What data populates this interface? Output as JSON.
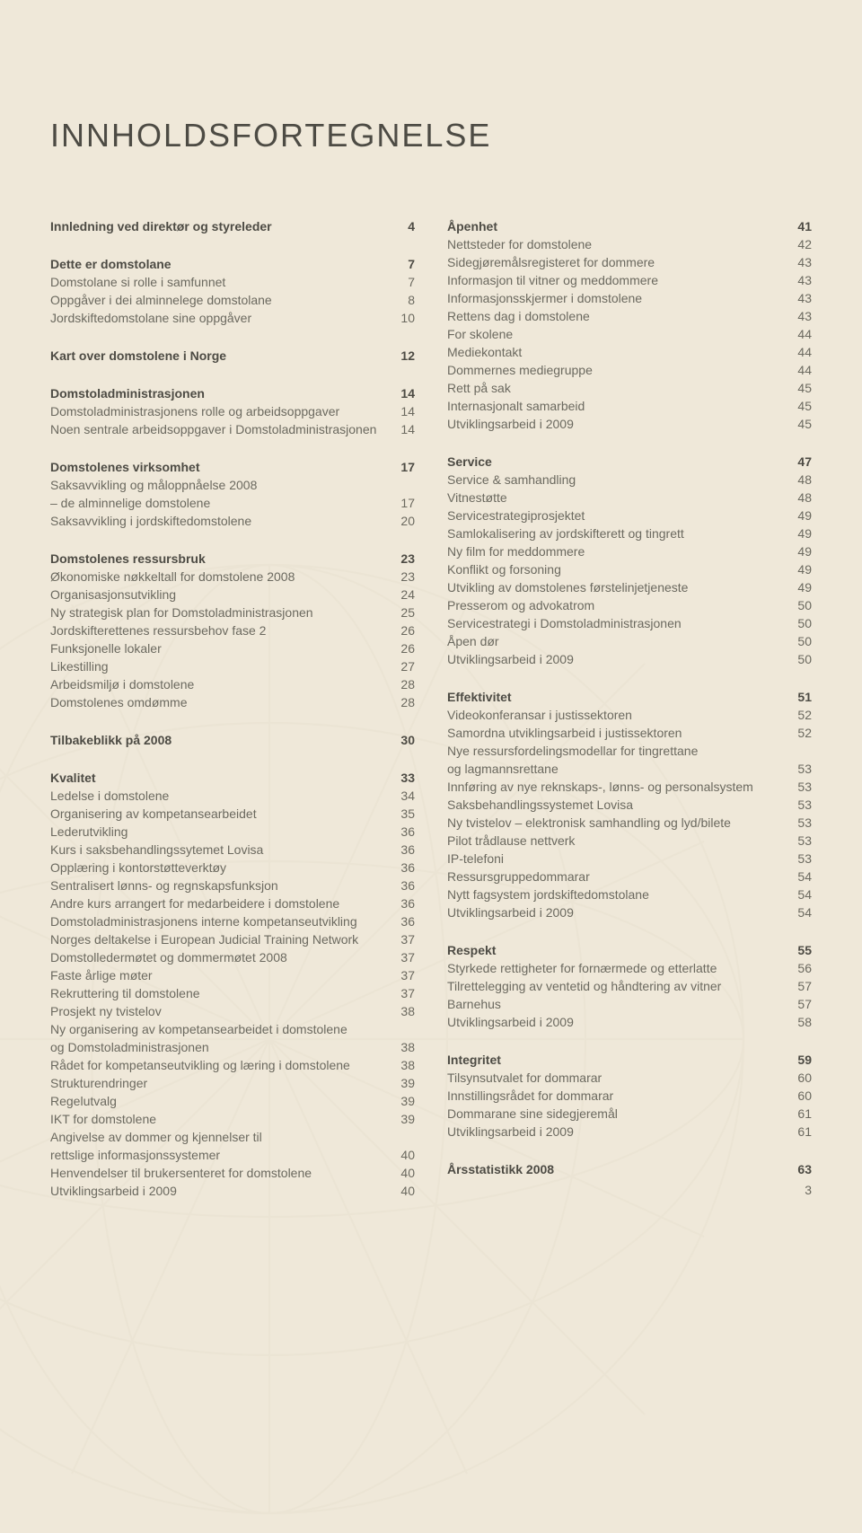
{
  "colors": {
    "background": "#efe8d9",
    "heading_text": "#4d4b44",
    "bold_text": "#4d4b44",
    "body_text": "#6b695f",
    "watermark_stroke": "#d9d0b9"
  },
  "title": "INNHOLDSFORTEGNELSE",
  "page_number": "3",
  "columns": [
    {
      "sections": [
        {
          "rows": [
            {
              "label": "Innledning ved direktør og styreleder",
              "page": "4",
              "bold": true
            }
          ]
        },
        {
          "rows": [
            {
              "label": "Dette er domstolane",
              "page": "7",
              "bold": true
            },
            {
              "label": "Domstolane si rolle i samfunnet",
              "page": "7"
            },
            {
              "label": "Oppgåver i dei alminnelege domstolane",
              "page": "8"
            },
            {
              "label": "Jordskiftedomstolane sine oppgåver",
              "page": "10"
            }
          ]
        },
        {
          "rows": [
            {
              "label": "Kart over domstolene i Norge",
              "page": "12",
              "bold": true
            }
          ]
        },
        {
          "rows": [
            {
              "label": "Domstoladministrasjonen",
              "page": "14",
              "bold": true
            },
            {
              "label": "Domstoladministrasjonens rolle og arbeidsoppgaver",
              "page": "14"
            },
            {
              "label": "Noen sentrale arbeidsoppgaver i Domstoladministrasjonen",
              "page": "14"
            }
          ]
        },
        {
          "rows": [
            {
              "label": "Domstolenes virksomhet",
              "page": "17",
              "bold": true
            },
            {
              "label": "Saksavvikling og måloppnåelse 2008",
              "page": ""
            },
            {
              "label": "– de alminnelige domstolene",
              "page": "17"
            },
            {
              "label": "Saksavvikling i jordskiftedomstolene",
              "page": "20"
            }
          ]
        },
        {
          "rows": [
            {
              "label": "Domstolenes ressursbruk",
              "page": "23",
              "bold": true
            },
            {
              "label": "Økonomiske nøkkeltall for domstolene 2008",
              "page": "23"
            },
            {
              "label": "Organisasjonsutvikling",
              "page": "24"
            },
            {
              "label": "Ny strategisk plan for Domstoladministrasjonen",
              "page": "25"
            },
            {
              "label": "Jordskifterettenes ressursbehov fase 2",
              "page": "26"
            },
            {
              "label": "Funksjonelle lokaler",
              "page": "26"
            },
            {
              "label": "Likestilling",
              "page": "27"
            },
            {
              "label": "Arbeidsmiljø i domstolene",
              "page": "28"
            },
            {
              "label": "Domstolenes omdømme",
              "page": "28"
            }
          ]
        },
        {
          "rows": [
            {
              "label": "Tilbakeblikk på 2008",
              "page": "30",
              "bold": true
            }
          ]
        },
        {
          "rows": [
            {
              "label": "Kvalitet",
              "page": "33",
              "bold": true
            },
            {
              "label": "Ledelse i domstolene",
              "page": "34"
            },
            {
              "label": "Organisering av kompetansearbeidet",
              "page": "35"
            },
            {
              "label": "Lederutvikling",
              "page": "36"
            },
            {
              "label": "Kurs i saksbehandlingssytemet Lovisa",
              "page": "36"
            },
            {
              "label": "Opplæring i kontorstøtteverktøy",
              "page": "36"
            },
            {
              "label": "Sentralisert lønns- og regnskapsfunksjon",
              "page": "36"
            },
            {
              "label": "Andre kurs arrangert for medarbeidere i domstolene",
              "page": "36"
            },
            {
              "label": "Domstoladministrasjonens interne kompetanseutvikling",
              "page": "36"
            },
            {
              "label": "Norges deltakelse i European Judicial Training Network",
              "page": "37"
            },
            {
              "label": "Domstolledermøtet og dommermøtet 2008",
              "page": "37"
            },
            {
              "label": "Faste årlige møter",
              "page": "37"
            },
            {
              "label": "Rekruttering til domstolene",
              "page": "37"
            },
            {
              "label": "Prosjekt ny tvistelov",
              "page": "38"
            },
            {
              "label": "Ny organisering av kompetansearbeidet i domstolene",
              "page": ""
            },
            {
              "label": "og Domstoladministrasjonen",
              "page": "38"
            },
            {
              "label": "Rådet for kompetanseutvikling og læring i domstolene",
              "page": "38"
            },
            {
              "label": "Strukturendringer",
              "page": "39"
            },
            {
              "label": "Regelutvalg",
              "page": "39"
            },
            {
              "label": "IKT for domstolene",
              "page": "39"
            },
            {
              "label": "Angivelse av dommer og kjennelser til",
              "page": ""
            },
            {
              "label": "rettslige informasjonssystemer",
              "page": "40"
            },
            {
              "label": "Henvendelser til brukersenteret for domstolene",
              "page": "40"
            },
            {
              "label": "Utviklingsarbeid i 2009",
              "page": "40"
            }
          ]
        }
      ]
    },
    {
      "sections": [
        {
          "rows": [
            {
              "label": "Åpenhet",
              "page": "41",
              "bold": true
            },
            {
              "label": "Nettsteder for domstolene",
              "page": "42"
            },
            {
              "label": "Sidegjøremålsregisteret for dommere",
              "page": "43"
            },
            {
              "label": "Informasjon til vitner og meddommere",
              "page": "43"
            },
            {
              "label": "Informasjonsskjermer i domstolene",
              "page": "43"
            },
            {
              "label": "Rettens dag i domstolene",
              "page": "43"
            },
            {
              "label": "For skolene",
              "page": "44"
            },
            {
              "label": "Mediekontakt",
              "page": "44"
            },
            {
              "label": "Dommernes mediegruppe",
              "page": "44"
            },
            {
              "label": "Rett på sak",
              "page": "45"
            },
            {
              "label": "Internasjonalt samarbeid",
              "page": "45"
            },
            {
              "label": "Utviklingsarbeid i 2009",
              "page": "45"
            }
          ]
        },
        {
          "rows": [
            {
              "label": "Service",
              "page": "47",
              "bold": true
            },
            {
              "label": "Service & samhandling",
              "page": "48"
            },
            {
              "label": "Vitnestøtte",
              "page": "48"
            },
            {
              "label": "Servicestrategiprosjektet",
              "page": "49"
            },
            {
              "label": "Samlokalisering av jordskifterett og tingrett",
              "page": "49"
            },
            {
              "label": "Ny film for meddommere",
              "page": "49"
            },
            {
              "label": "Konflikt og forsoning",
              "page": "49"
            },
            {
              "label": "Utvikling av domstolenes førstelinjetjeneste",
              "page": "49"
            },
            {
              "label": "Presserom og advokatrom",
              "page": "50"
            },
            {
              "label": "Servicestrategi i Domstoladministrasjonen",
              "page": "50"
            },
            {
              "label": "Åpen dør",
              "page": "50"
            },
            {
              "label": "Utviklingsarbeid i 2009",
              "page": "50"
            }
          ]
        },
        {
          "rows": [
            {
              "label": "Effektivitet",
              "page": "51",
              "bold": true
            },
            {
              "label": "Videokonferansar i justissektoren",
              "page": "52"
            },
            {
              "label": "Samordna utviklingsarbeid i justissektoren",
              "page": "52"
            },
            {
              "label": "Nye ressursfordelingsmodellar for tingrettane",
              "page": ""
            },
            {
              "label": "og lagmannsrettane",
              "page": "53"
            },
            {
              "label": "Innføring av nye reknskaps-, lønns- og personalsystem",
              "page": "53"
            },
            {
              "label": "Saksbehandlingssystemet Lovisa",
              "page": "53"
            },
            {
              "label": "Ny tvistelov – elektronisk samhandling og lyd/bilete",
              "page": "53"
            },
            {
              "label": "Pilot trådlause nettverk",
              "page": "53"
            },
            {
              "label": "IP-telefoni",
              "page": "53"
            },
            {
              "label": "Ressursgruppedommarar",
              "page": "54"
            },
            {
              "label": "Nytt fagsystem jordskiftedomstolane",
              "page": "54"
            },
            {
              "label": "Utviklingsarbeid i 2009",
              "page": "54"
            }
          ]
        },
        {
          "rows": [
            {
              "label": "Respekt",
              "page": "55",
              "bold": true
            },
            {
              "label": "Styrkede rettigheter for fornærmede og etterlatte",
              "page": "56"
            },
            {
              "label": "Tilrettelegging av ventetid og håndtering av vitner",
              "page": "57"
            },
            {
              "label": "Barnehus",
              "page": "57"
            },
            {
              "label": "Utviklingsarbeid i 2009",
              "page": "58"
            }
          ]
        },
        {
          "rows": [
            {
              "label": "Integritet",
              "page": "59",
              "bold": true
            },
            {
              "label": "Tilsynsutvalet for dommarar",
              "page": "60"
            },
            {
              "label": "Innstillingsrådet for dommarar",
              "page": "60"
            },
            {
              "label": "Dommarane sine sidegjeremål",
              "page": "61"
            },
            {
              "label": "Utviklingsarbeid i 2009",
              "page": "61"
            }
          ]
        },
        {
          "rows": [
            {
              "label": "Årsstatistikk 2008",
              "page": "63",
              "bold": true
            }
          ]
        }
      ]
    }
  ]
}
